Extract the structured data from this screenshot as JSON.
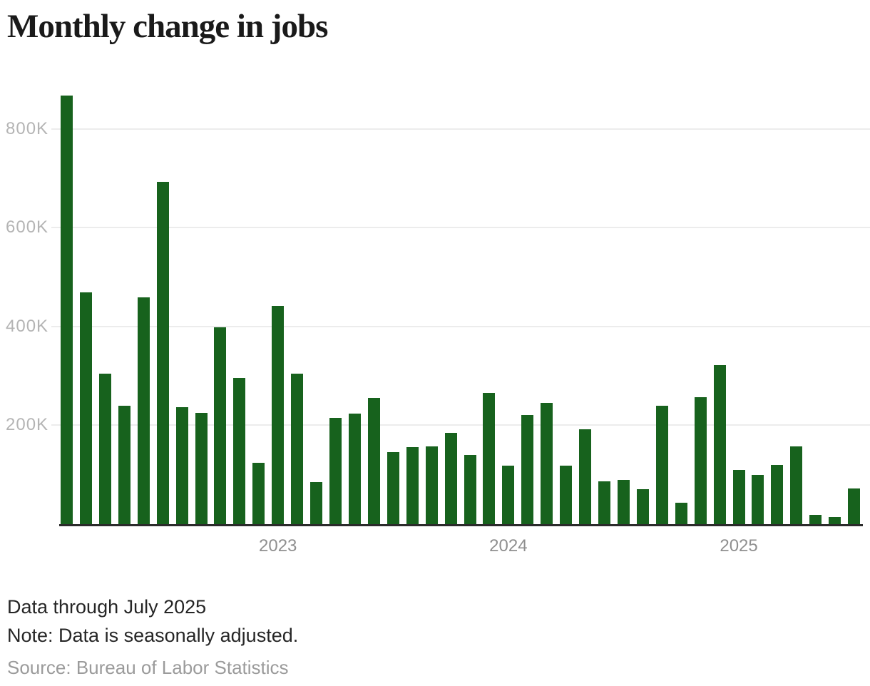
{
  "chart_data": {
    "type": "bar",
    "title": "Monthly change in jobs",
    "unit": "jobs",
    "bar_color": "#17621d",
    "grid": true,
    "ylim_thousands": [
      0,
      893
    ],
    "y_ticks": [
      "200K",
      "400K",
      "600K",
      "800K"
    ],
    "y_tick_values_thousands": [
      200,
      400,
      600,
      800
    ],
    "x_ticks": [
      {
        "label": "2023",
        "month_index": 11
      },
      {
        "label": "2024",
        "month_index": 23
      },
      {
        "label": "2025",
        "month_index": 35
      }
    ],
    "x": [
      "Feb 2022",
      "Mar 2022",
      "Apr 2022",
      "May 2022",
      "Jun 2022",
      "Jul 2022",
      "Aug 2022",
      "Sep 2022",
      "Oct 2022",
      "Nov 2022",
      "Dec 2022",
      "Jan 2023",
      "Feb 2023",
      "Mar 2023",
      "Apr 2023",
      "May 2023",
      "Jun 2023",
      "Jul 2023",
      "Aug 2023",
      "Sep 2023",
      "Oct 2023",
      "Nov 2023",
      "Dec 2023",
      "Jan 2024",
      "Feb 2024",
      "Mar 2024",
      "Apr 2024",
      "May 2024",
      "Jun 2024",
      "Jul 2024",
      "Aug 2024",
      "Sep 2024",
      "Oct 2024",
      "Nov 2024",
      "Dec 2024",
      "Jan 2025",
      "Feb 2025",
      "Mar 2025",
      "Apr 2025",
      "May 2025",
      "Jun 2025",
      "Jul 2025"
    ],
    "values_thousands": [
      870,
      470,
      305,
      240,
      460,
      695,
      237,
      226,
      400,
      296,
      125,
      443,
      305,
      85,
      215,
      225,
      256,
      146,
      157,
      158,
      185,
      140,
      267,
      119,
      222,
      246,
      118,
      193,
      87,
      90,
      71,
      240,
      43,
      258,
      323,
      110,
      100,
      120,
      158,
      19,
      14,
      73
    ]
  },
  "footer": {
    "line1": "Data through July 2025",
    "line2": "Note: Data is seasonally adjusted.",
    "source": "Source: Bureau of Labor Statistics"
  }
}
